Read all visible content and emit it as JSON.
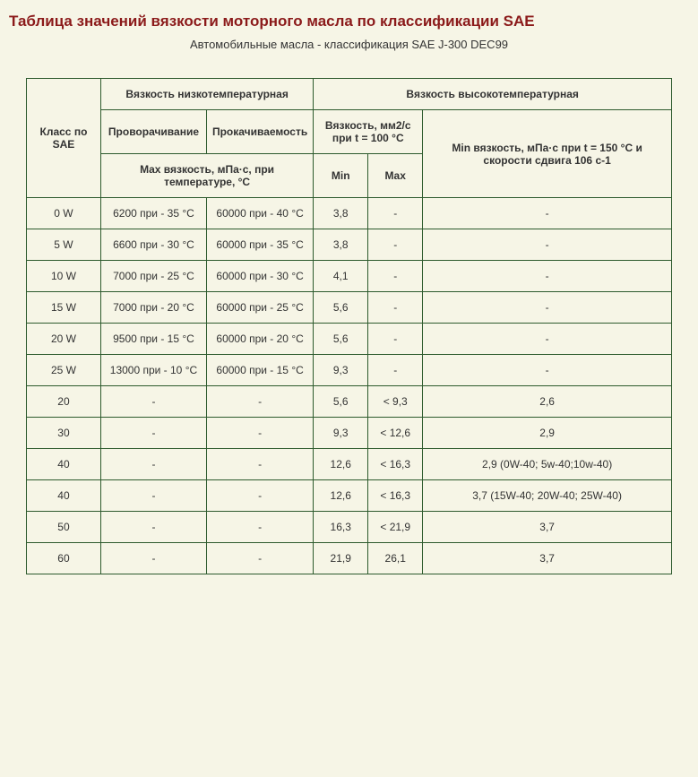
{
  "title": "Таблица значений вязкости моторного масла по классификации SAE",
  "subtitle": "Автомобильные масла - классификация SAE J-300 DEC99",
  "headers": {
    "sae": "Класс по SAE",
    "low_temp": "Вязкость низкотемпературная",
    "high_temp": "Вязкость высокотемпературная",
    "crank": "Проворачивание",
    "pump": "Прокачиваемость",
    "visc_100": "Вязкость, мм2/с при t = 100 °C",
    "min150": "Min вязкость, мПа·с при t = 150 °C и скорости сдвига 106 с-1",
    "max_visc_temp": "Max вязкость, мПа·с, при температуре, °C",
    "min": "Min",
    "max": "Max"
  },
  "rows": [
    {
      "sae": "0 W",
      "crank": "6200 при - 35 °C",
      "pump": "60000 при - 40 °C",
      "min": "3,8",
      "max": "-",
      "hv": "-"
    },
    {
      "sae": "5 W",
      "crank": "6600 при - 30 °C",
      "pump": "60000 при - 35 °C",
      "min": "3,8",
      "max": "-",
      "hv": "-"
    },
    {
      "sae": "10 W",
      "crank": "7000 при - 25 °C",
      "pump": "60000 при - 30 °C",
      "min": "4,1",
      "max": "-",
      "hv": "-"
    },
    {
      "sae": "15 W",
      "crank": "7000 при - 20 °C",
      "pump": "60000 при - 25 °C",
      "min": "5,6",
      "max": "-",
      "hv": "-"
    },
    {
      "sae": "20 W",
      "crank": "9500 при - 15 °C",
      "pump": "60000 при - 20 °C",
      "min": "5,6",
      "max": "-",
      "hv": "-"
    },
    {
      "sae": "25 W",
      "crank": "13000 при - 10 °C",
      "pump": "60000 при - 15 °C",
      "min": "9,3",
      "max": "-",
      "hv": "-"
    },
    {
      "sae": "20",
      "crank": "-",
      "pump": "-",
      "min": "5,6",
      "max": "< 9,3",
      "hv": "2,6"
    },
    {
      "sae": "30",
      "crank": "-",
      "pump": "-",
      "min": "9,3",
      "max": "< 12,6",
      "hv": "2,9"
    },
    {
      "sae": "40",
      "crank": "-",
      "pump": "-",
      "min": "12,6",
      "max": "< 16,3",
      "hv": "2,9 (0W-40; 5w-40;10w-40)"
    },
    {
      "sae": "40",
      "crank": "-",
      "pump": "-",
      "min": "12,6",
      "max": "< 16,3",
      "hv": "3,7 (15W-40; 20W-40; 25W-40)"
    },
    {
      "sae": "50",
      "crank": "-",
      "pump": "-",
      "min": "16,3",
      "max": "< 21,9",
      "hv": "3,7"
    },
    {
      "sae": "60",
      "crank": "-",
      "pump": "-",
      "min": "21,9",
      "max": "26,1",
      "hv": "3,7"
    }
  ]
}
